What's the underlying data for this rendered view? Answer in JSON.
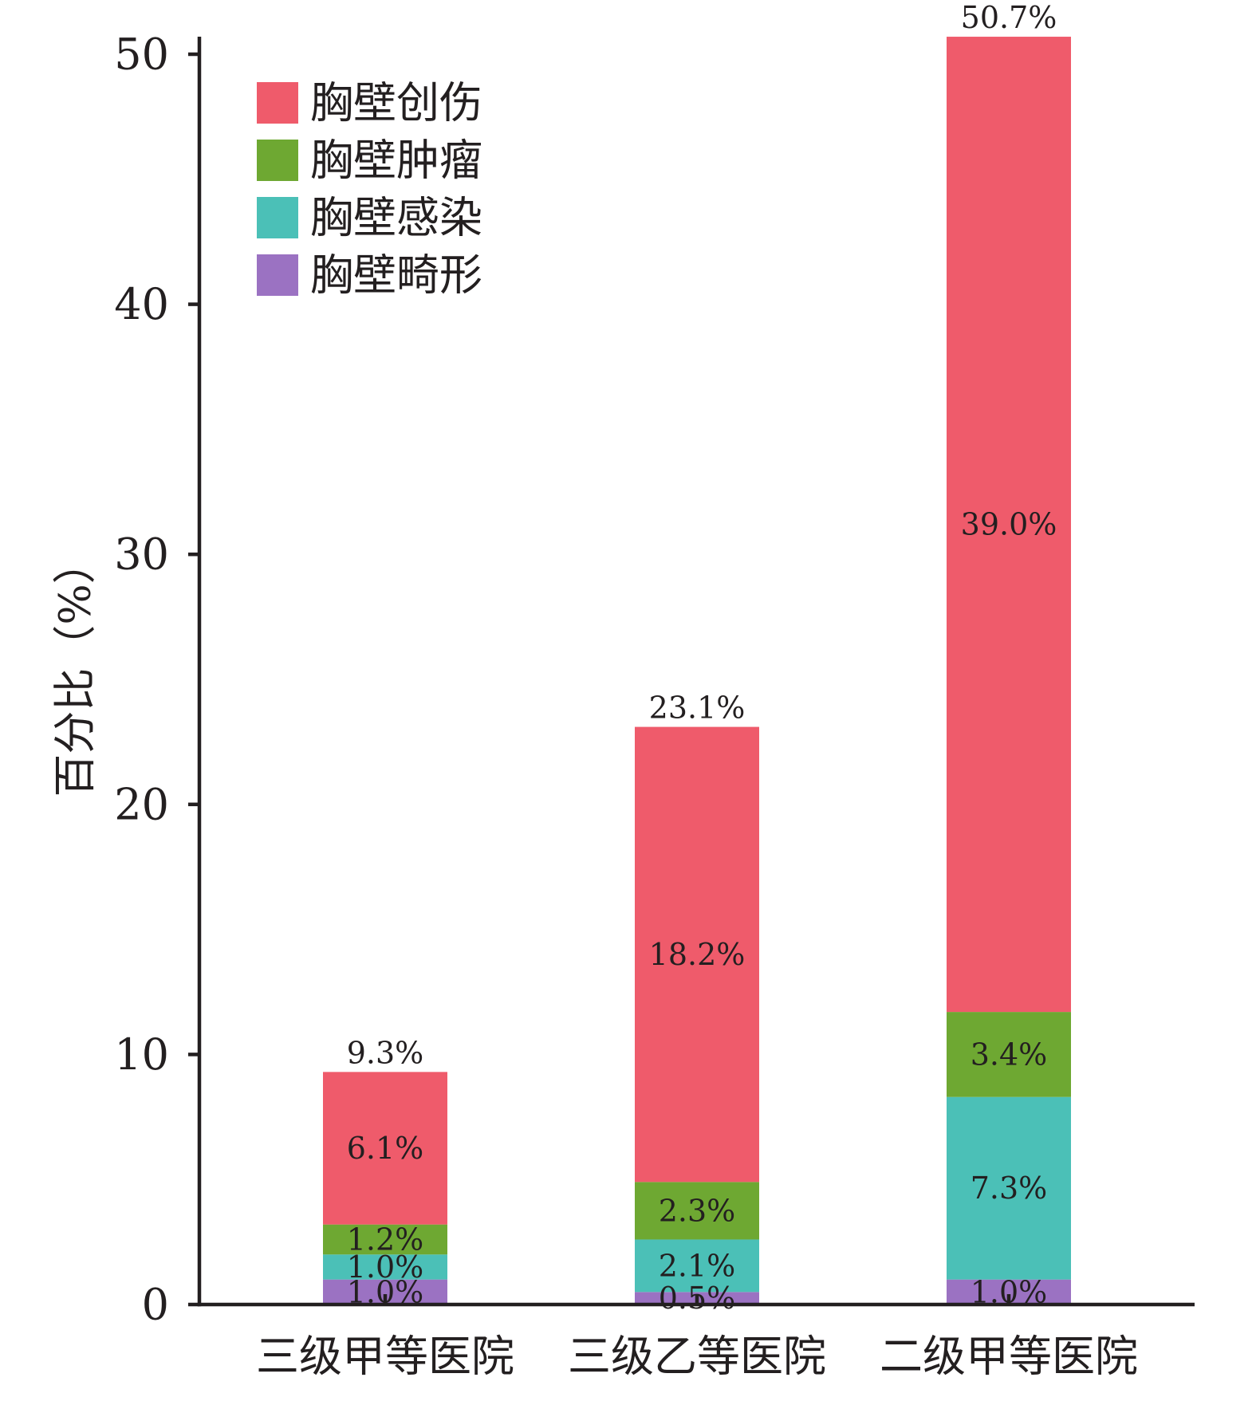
{
  "chart_data": {
    "type": "bar",
    "stacked": true,
    "categories": [
      "三级甲等医院",
      "三级乙等医院",
      "二级甲等医院"
    ],
    "series": [
      {
        "name": "胸壁畸形",
        "color": "#9B72C2",
        "values": [
          1.0,
          0.5,
          1.0
        ],
        "labels": [
          "1.0%",
          "0.5%",
          "1.0%"
        ]
      },
      {
        "name": "胸壁感染",
        "color": "#4BC0B7",
        "values": [
          1.0,
          2.1,
          7.3
        ],
        "labels": [
          "1.0%",
          "2.1%",
          "7.3%"
        ]
      },
      {
        "name": "胸壁肿瘤",
        "color": "#6EA832",
        "values": [
          1.2,
          2.3,
          3.4
        ],
        "labels": [
          "1.2%",
          "2.3%",
          "3.4%"
        ]
      },
      {
        "name": "胸壁创伤",
        "color": "#EF5B6B",
        "values": [
          6.1,
          18.2,
          39.0
        ],
        "labels": [
          "6.1%",
          "18.2%",
          "39.0%"
        ]
      }
    ],
    "total_labels": [
      "9.3%",
      "23.1%",
      "50.7%"
    ],
    "ylabel": "百分比（%）",
    "ylim": [
      0,
      50.7
    ],
    "yticks": [
      0,
      10,
      20,
      30,
      40,
      50
    ],
    "grid": false,
    "legend": {
      "position": "top-left"
    }
  }
}
